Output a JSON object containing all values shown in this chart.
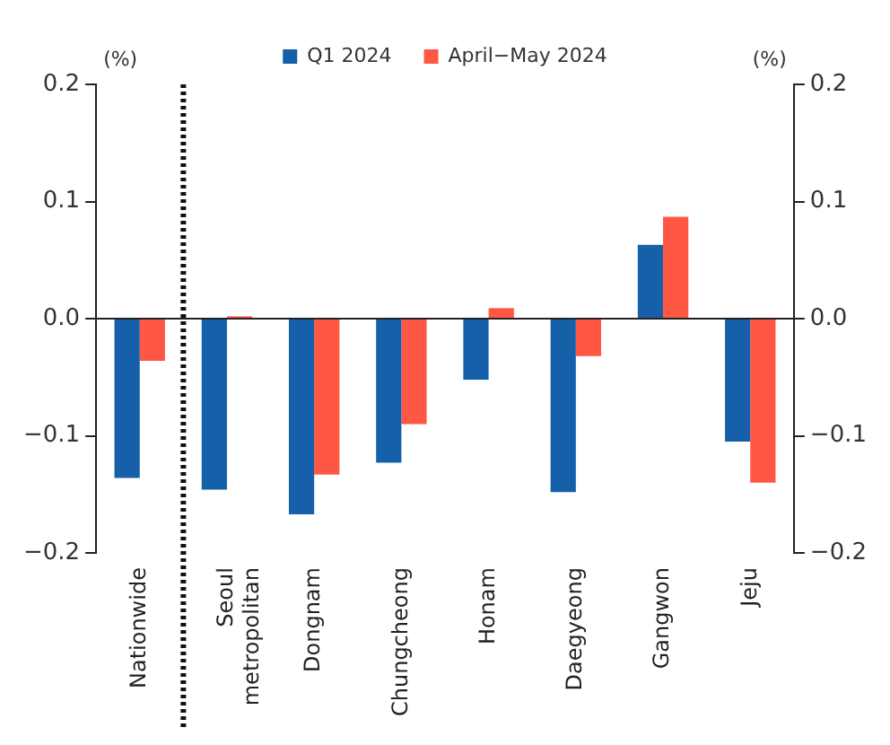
{
  "chart_data": {
    "type": "bar",
    "categories": [
      "Nationwide",
      "Seoul metropolitan",
      "Dongnam",
      "Chungcheong",
      "Honam",
      "Daegyeong",
      "Gangwon",
      "Jeju"
    ],
    "series": [
      {
        "name": "Q1 2024",
        "color": "#1560a8",
        "values": [
          -0.136,
          -0.146,
          -0.167,
          -0.123,
          -0.052,
          -0.148,
          0.063,
          -0.105
        ]
      },
      {
        "name": "April−May 2024",
        "color": "#fe5844",
        "values": [
          -0.036,
          0.002,
          -0.133,
          -0.09,
          0.009,
          -0.032,
          0.087,
          -0.14
        ]
      }
    ],
    "ylabel": "(%)",
    "y2label": "(%)",
    "ylim": [
      -0.2,
      0.2
    ],
    "yticks": [
      -0.2,
      -0.1,
      {
        "value": 0,
        "label": "0.0"
      },
      0.1,
      0.2
    ],
    "y2lim": [
      -0.2,
      0.2
    ],
    "y2ticks": [
      -0.2,
      -0.1,
      {
        "value": 0,
        "label": "0.0"
      },
      0.1,
      0.2
    ],
    "ref_lines": [
      {
        "axis": "x",
        "value": "Nationwide",
        "color": "#111111",
        "line_style": "dotted"
      }
    ],
    "grid": false,
    "legend": "top"
  }
}
